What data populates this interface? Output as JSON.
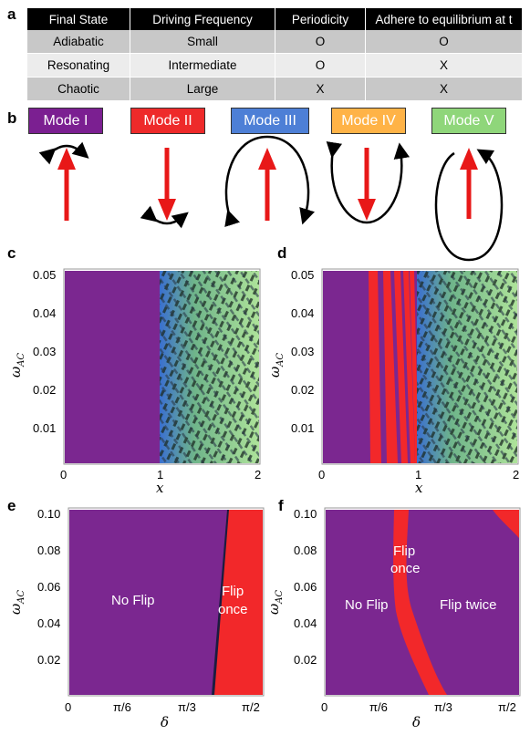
{
  "panels": {
    "a": "a",
    "b": "b",
    "c": "c",
    "d": "d",
    "e": "e",
    "f": "f"
  },
  "table": {
    "headers": [
      "Final State",
      "Driving Frequency",
      "Periodicity",
      "Adhere to equilibrium at t"
    ],
    "rows": [
      [
        "Adiabatic",
        "Small",
        "O",
        "O"
      ],
      [
        "Resonating",
        "Intermediate",
        "O",
        "X"
      ],
      [
        "Chaotic",
        "Large",
        "X",
        "X"
      ]
    ]
  },
  "modes": [
    {
      "label": "Mode I",
      "color": "#7b1f91"
    },
    {
      "label": "Mode II",
      "color": "#ee2a2a"
    },
    {
      "label": "Mode III",
      "color": "#4d7fd6"
    },
    {
      "label": "Mode IV",
      "color": "#ffb347"
    },
    {
      "label": "Mode V",
      "color": "#8fd67a"
    }
  ],
  "colors": {
    "purple": "#7b2790",
    "red": "#f2282a",
    "blue": "#3c6fd0",
    "green": "#a8e08e",
    "dark": "#1c2c22"
  },
  "plot_c": {
    "ylabel": "ω",
    "ylabel_sub": "AC",
    "xlabel": "x",
    "yticks": [
      "0.01",
      "0.02",
      "0.03",
      "0.04",
      "0.05"
    ],
    "xticks": [
      "0",
      "1",
      "2"
    ]
  },
  "plot_d": {
    "ylabel": "ω",
    "ylabel_sub": "AC",
    "xlabel": "x",
    "yticks": [
      "0.01",
      "0.02",
      "0.03",
      "0.04",
      "0.05"
    ],
    "xticks": [
      "0",
      "1",
      "2"
    ]
  },
  "plot_e": {
    "ylabel": "ω",
    "ylabel_sub": "AC",
    "xlabel": "δ",
    "yticks": [
      "0.02",
      "0.04",
      "0.06",
      "0.08",
      "0.10"
    ],
    "xticks": [
      "0",
      "π/6",
      "π/3",
      "π/2"
    ],
    "regions": {
      "no_flip": "No Flip",
      "flip_once_1": "Flip",
      "flip_once_2": "once"
    }
  },
  "plot_f": {
    "ylabel": "ω",
    "ylabel_sub": "AC",
    "xlabel": "δ",
    "yticks": [
      "0.02",
      "0.04",
      "0.06",
      "0.08",
      "0.10"
    ],
    "xticks": [
      "0",
      "π/6",
      "π/3",
      "π/2"
    ],
    "regions": {
      "no_flip": "No Flip",
      "flip_once_1": "Flip",
      "flip_once_2": "once",
      "flip_twice": "Flip twice"
    }
  }
}
